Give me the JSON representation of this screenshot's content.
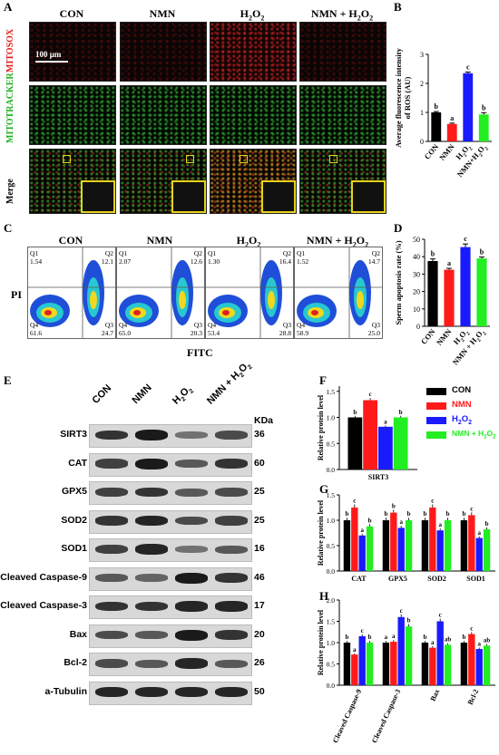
{
  "panels": {
    "A": "A",
    "B": "B",
    "C": "C",
    "D": "D",
    "E": "E",
    "F": "F",
    "G": "G",
    "H": "H"
  },
  "groups": [
    "CON",
    "NMN",
    "H2O2",
    "NMN + H2O2"
  ],
  "panelA": {
    "rows": [
      "MITOSOX",
      "MITOTRACKER",
      "Merge"
    ],
    "scale_bar": "100 μm"
  },
  "panelC": {
    "y_axis": "PI",
    "x_axis": "FITC",
    "plots": [
      {
        "q1": "1.54",
        "q2": "12.1",
        "q3": "24.7",
        "q4": "61.6"
      },
      {
        "q1": "2.07",
        "q2": "12.6",
        "q3": "20.3",
        "q4": "65.0"
      },
      {
        "q1": "1.30",
        "q2": "16.4",
        "q3": "28.8",
        "q4": "53.4"
      },
      {
        "q1": "1.52",
        "q2": "14.7",
        "q3": "25.0",
        "q4": "58.9"
      }
    ],
    "quadrants": [
      "Q1",
      "Q2",
      "Q3",
      "Q4"
    ]
  },
  "panelE": {
    "header": [
      "CON",
      "NMN",
      "H2O2",
      "NMN + H2O2"
    ],
    "kda_label": "KDa",
    "proteins": [
      {
        "name": "SIRT3",
        "kda": "36"
      },
      {
        "name": "CAT",
        "kda": "60"
      },
      {
        "name": "GPX5",
        "kda": "25"
      },
      {
        "name": "SOD2",
        "kda": "25"
      },
      {
        "name": "SOD1",
        "kda": "16"
      },
      {
        "name": "Cleaved Caspase-9",
        "kda": "46"
      },
      {
        "name": "Cleaved Caspase-3",
        "kda": "17"
      },
      {
        "name": "Bax",
        "kda": "20"
      },
      {
        "name": "Bcl-2",
        "kda": "26"
      },
      {
        "name": "a-Tubulin",
        "kda": "50"
      }
    ]
  },
  "legend": {
    "items": [
      {
        "label": "CON",
        "color": "#000000"
      },
      {
        "label": "NMN",
        "color": "#ff1a1a"
      },
      {
        "label": "H2O2",
        "color": "#1a1aff"
      },
      {
        "label": "NMN + H2O2",
        "color": "#22ee22"
      }
    ]
  },
  "chart_data": [
    {
      "panel": "B",
      "type": "bar",
      "categories": [
        "CON",
        "NMN",
        "H2O2",
        "NMN+H2O2"
      ],
      "values": [
        1.0,
        0.6,
        2.35,
        0.93
      ],
      "letters": [
        "b",
        "a",
        "c",
        "b"
      ],
      "ylabel": "Average fluorescence intensity of ROS (AU)",
      "ylim": [
        0,
        3
      ],
      "yticks": [
        0,
        1,
        2,
        3
      ],
      "colors": [
        "#000000",
        "#ff1a1a",
        "#1a1aff",
        "#22ee22"
      ]
    },
    {
      "panel": "D",
      "type": "bar",
      "categories": [
        "CON",
        "NMN",
        "H2O2",
        "NMN + H2O2"
      ],
      "values": [
        37.5,
        32.5,
        45.5,
        39.0
      ],
      "letters": [
        "b",
        "a",
        "c",
        "b"
      ],
      "ylabel": "Sperm apoptosis rate (%)",
      "ylim": [
        0,
        50
      ],
      "yticks": [
        0,
        10,
        20,
        30,
        40,
        50
      ],
      "colors": [
        "#000000",
        "#ff1a1a",
        "#1a1aff",
        "#22ee22"
      ]
    },
    {
      "panel": "F",
      "type": "bar",
      "categories": [
        "SIRT3"
      ],
      "series": [
        {
          "name": "CON",
          "values": [
            1.0
          ],
          "letters": [
            "b"
          ]
        },
        {
          "name": "NMN",
          "values": [
            1.33
          ],
          "letters": [
            "c"
          ]
        },
        {
          "name": "H2O2",
          "values": [
            0.82
          ],
          "letters": [
            "a"
          ]
        },
        {
          "name": "NMN + H2O2",
          "values": [
            1.0
          ],
          "letters": [
            "b"
          ]
        }
      ],
      "ylabel": "Relative protein level",
      "ylim": [
        0,
        1.6
      ],
      "yticks": [
        0.0,
        0.5,
        1.0,
        1.5
      ]
    },
    {
      "panel": "G",
      "type": "bar",
      "categories": [
        "CAT",
        "GPX5",
        "SOD2",
        "SOD1"
      ],
      "series": [
        {
          "name": "CON",
          "values": [
            1.0,
            1.0,
            1.0,
            1.0
          ],
          "letters": [
            "b",
            "b",
            "b",
            "b"
          ]
        },
        {
          "name": "NMN",
          "values": [
            1.25,
            1.15,
            1.25,
            1.1
          ],
          "letters": [
            "c",
            "b",
            "c",
            "c"
          ]
        },
        {
          "name": "H2O2",
          "values": [
            0.7,
            0.85,
            0.8,
            0.65
          ],
          "letters": [
            "a",
            "a",
            "a",
            "a"
          ]
        },
        {
          "name": "NMN + H2O2",
          "values": [
            0.88,
            1.0,
            1.0,
            0.82
          ],
          "letters": [
            "b",
            "b",
            "b",
            "b"
          ]
        }
      ],
      "ylabel": "Relative protein level",
      "ylim": [
        0,
        1.5
      ],
      "yticks": [
        0.0,
        0.5,
        1.0,
        1.5
      ]
    },
    {
      "panel": "H",
      "type": "bar",
      "categories": [
        "Cleaved Caspase-9",
        "Cleaved Caspase-3",
        "Bax",
        "Bcl-2"
      ],
      "series": [
        {
          "name": "CON",
          "values": [
            1.0,
            1.0,
            1.0,
            1.0
          ],
          "letters": [
            "b",
            "a",
            "b",
            "b"
          ]
        },
        {
          "name": "NMN",
          "values": [
            0.72,
            1.02,
            0.88,
            1.2
          ],
          "letters": [
            "a",
            "a",
            "a",
            "c"
          ]
        },
        {
          "name": "H2O2",
          "values": [
            1.15,
            1.6,
            1.5,
            0.85
          ],
          "letters": [
            "c",
            "c",
            "c",
            "a"
          ]
        },
        {
          "name": "NMN + H2O2",
          "values": [
            1.0,
            1.38,
            0.95,
            0.93
          ],
          "letters": [
            "b",
            "b",
            "ab",
            "ab"
          ]
        }
      ],
      "ylabel": "Relative protein level",
      "ylim": [
        0,
        2.0
      ],
      "yticks": [
        0.0,
        0.5,
        1.0,
        1.5,
        2.0
      ]
    }
  ]
}
